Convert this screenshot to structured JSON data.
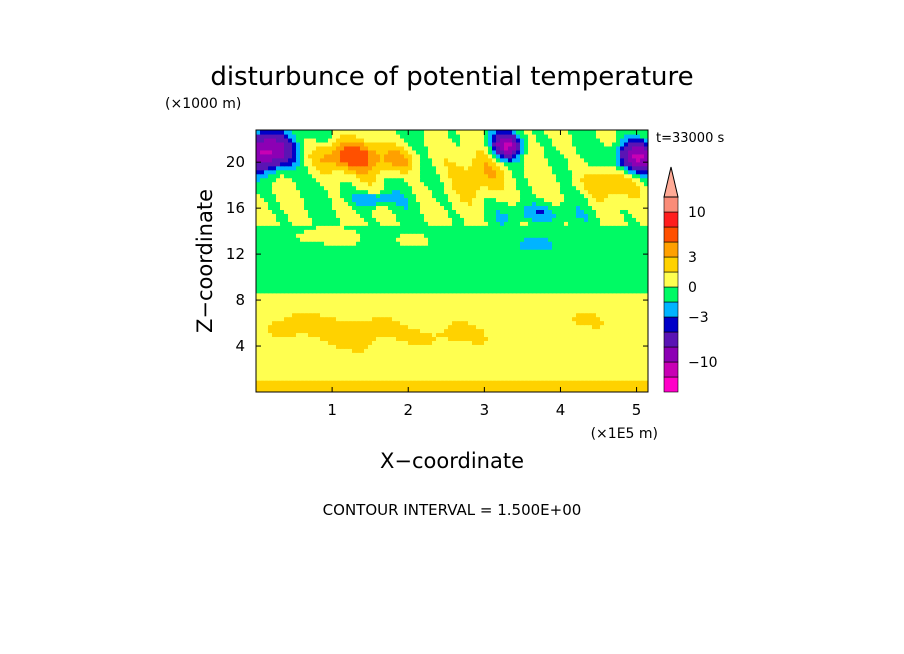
{
  "chart_data": {
    "type": "heatmap",
    "title": "disturbunce of potential temperature",
    "z_units_label": "(×1000 m)",
    "x_units_label": "(×1E5 m)",
    "xlabel": "X−coordinate",
    "ylabel": "Z−coordinate",
    "time_label": "t=33000 s",
    "footer": "CONTOUR INTERVAL = 1.500E+00",
    "xlim": [
      0,
      5.15
    ],
    "ylim": [
      0,
      22.8
    ],
    "x_ticks": [
      {
        "value": 1,
        "label": "1"
      },
      {
        "value": 2,
        "label": "2"
      },
      {
        "value": 3,
        "label": "3"
      },
      {
        "value": 4,
        "label": "4"
      },
      {
        "value": 5,
        "label": "5"
      }
    ],
    "y_ticks": [
      {
        "value": 4,
        "label": "4"
      },
      {
        "value": 8,
        "label": "8"
      },
      {
        "value": 12,
        "label": "12"
      },
      {
        "value": 16,
        "label": "16"
      },
      {
        "value": 20,
        "label": "20"
      }
    ],
    "contour_interval": 1.5,
    "colorbar": {
      "levels": [
        -16.5,
        -13.5,
        -10.5,
        -7.5,
        -4.5,
        -3,
        -1.5,
        0,
        1.5,
        3,
        4.5,
        7.5,
        10.5,
        13.5,
        16.5
      ],
      "colors": [
        "#ff00c8",
        "#c800b4",
        "#8c00b4",
        "#5a14b4",
        "#0000c8",
        "#00b4ff",
        "#00fa64",
        "#ffff50",
        "#ffd200",
        "#ffa000",
        "#ff5000",
        "#ff1e1e",
        "#fa8c78",
        "#ffaa96"
      ],
      "labels": [
        {
          "value": 10.5,
          "label": "10"
        },
        {
          "value": 3,
          "label": "3"
        },
        {
          "value": 0,
          "label": "0"
        },
        {
          "value": -3,
          "label": "−3"
        },
        {
          "value": -10.5,
          "label": "−10"
        }
      ]
    }
  }
}
